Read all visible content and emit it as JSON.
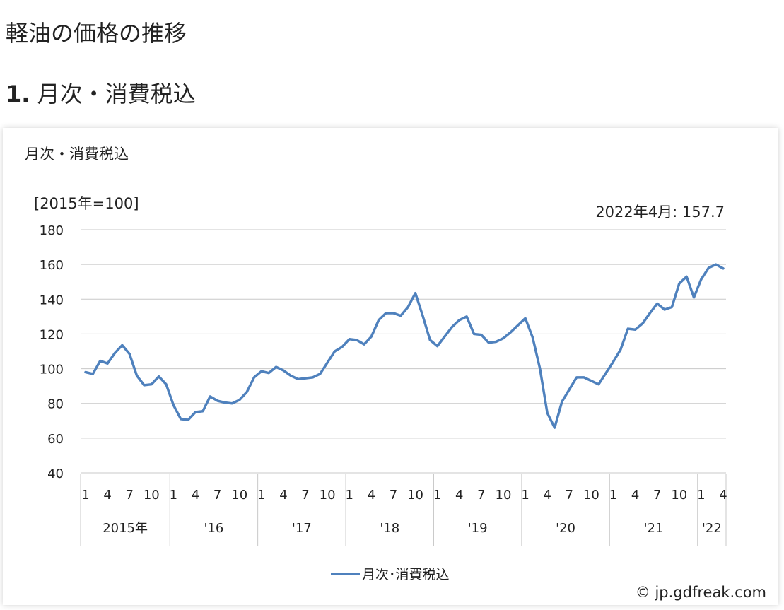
{
  "page": {
    "title": "軽油の価格の推移",
    "section_number": "1.",
    "section_title": "月次・消費税込"
  },
  "chart_data": {
    "type": "line",
    "title": "月次・消費税込",
    "unit_label": "[2015年=100]",
    "annotation": "2022年4月: 157.7",
    "copyright": "© jp.gdfreak.com",
    "ylim": [
      40,
      180
    ],
    "y_ticks": [
      40,
      60,
      80,
      100,
      120,
      140,
      160,
      180
    ],
    "grid": true,
    "legend_position": "bottom",
    "month_tick_labels": [
      "1",
      "4",
      "7",
      "10"
    ],
    "year_labels": [
      "2015年",
      "'16",
      "'17",
      "'18",
      "'19",
      "'20",
      "'21",
      "'22"
    ],
    "x_start": "2015-01",
    "x_end": "2022-04",
    "line_color": "#4f81bd",
    "series": [
      {
        "name": "月次･消費税込",
        "values": [
          98,
          97,
          104.5,
          103,
          109,
          113.5,
          108.5,
          96,
          90.5,
          91,
          95.5,
          91,
          79,
          71,
          70.5,
          75,
          75.5,
          84,
          81.5,
          80.5,
          80,
          82,
          86.5,
          95,
          98.5,
          97.5,
          101,
          99,
          96,
          94,
          94.5,
          95,
          97,
          103.5,
          110,
          112.5,
          117,
          116.5,
          114,
          118.5,
          128,
          132,
          132,
          130.5,
          135.5,
          143.5,
          130.5,
          116.5,
          113,
          118.5,
          124,
          128,
          130,
          120,
          119.5,
          115,
          115.5,
          117.5,
          121,
          125,
          129,
          118,
          100,
          74.5,
          66,
          81,
          88,
          95,
          95,
          93,
          91,
          97.5,
          104,
          111,
          123,
          122.5,
          126,
          132,
          137.5,
          134,
          135.5,
          149,
          153,
          141,
          151.5,
          158,
          160,
          157.7
        ]
      }
    ]
  }
}
